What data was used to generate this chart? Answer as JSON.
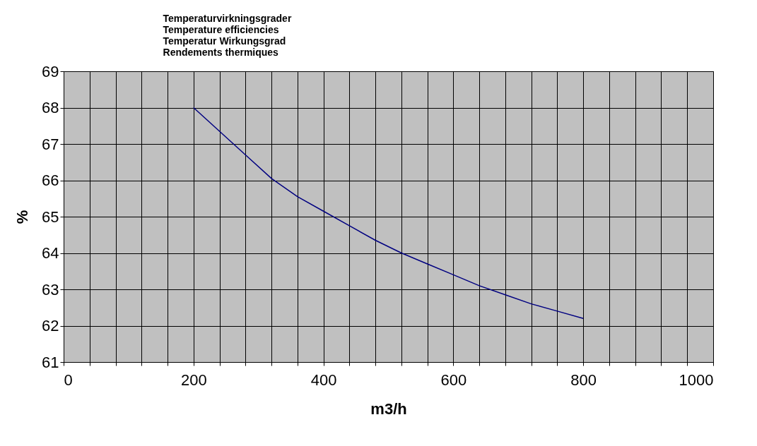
{
  "chart_data": {
    "type": "line",
    "title": "Temperaturvirkningsgrader\nTemperature efficiencies\nTemperatur Wirkungsgrad\nRendements thermiques",
    "xlabel": "m3/h",
    "ylabel": "%",
    "x": [
      200,
      240,
      280,
      320,
      360,
      400,
      440,
      480,
      520,
      560,
      600,
      640,
      680,
      720,
      760,
      800
    ],
    "series": [
      {
        "color": "#000080",
        "values": [
          68.0,
          67.35,
          66.7,
          66.05,
          65.55,
          65.15,
          64.75,
          64.35,
          64.0,
          63.7,
          63.4,
          63.1,
          62.85,
          62.6,
          62.4,
          62.2
        ]
      }
    ],
    "xlim": [
      0,
      1000
    ],
    "ylim": [
      61,
      69
    ],
    "xticks": [
      0,
      {
        "value": 40,
        "label": null
      },
      {
        "value": 80,
        "label": null
      },
      {
        "value": 120,
        "label": null
      },
      {
        "value": 160,
        "label": null
      },
      200,
      {
        "value": 240,
        "label": null
      },
      {
        "value": 280,
        "label": null
      },
      {
        "value": 320,
        "label": null
      },
      {
        "value": 360,
        "label": null
      },
      400,
      {
        "value": 440,
        "label": null
      },
      {
        "value": 480,
        "label": null
      },
      {
        "value": 520,
        "label": null
      },
      {
        "value": 560,
        "label": null
      },
      600,
      {
        "value": 640,
        "label": null
      },
      {
        "value": 680,
        "label": null
      },
      {
        "value": 720,
        "label": null
      },
      {
        "value": 760,
        "label": null
      },
      800,
      {
        "value": 840,
        "label": null
      },
      {
        "value": 880,
        "label": null
      },
      {
        "value": 920,
        "label": null
      },
      {
        "value": 960,
        "label": null
      },
      1000
    ],
    "yticks": [
      61,
      62,
      63,
      64,
      65,
      66,
      67,
      68,
      69
    ],
    "grid": true,
    "marker": "none",
    "line_style": "solid"
  }
}
